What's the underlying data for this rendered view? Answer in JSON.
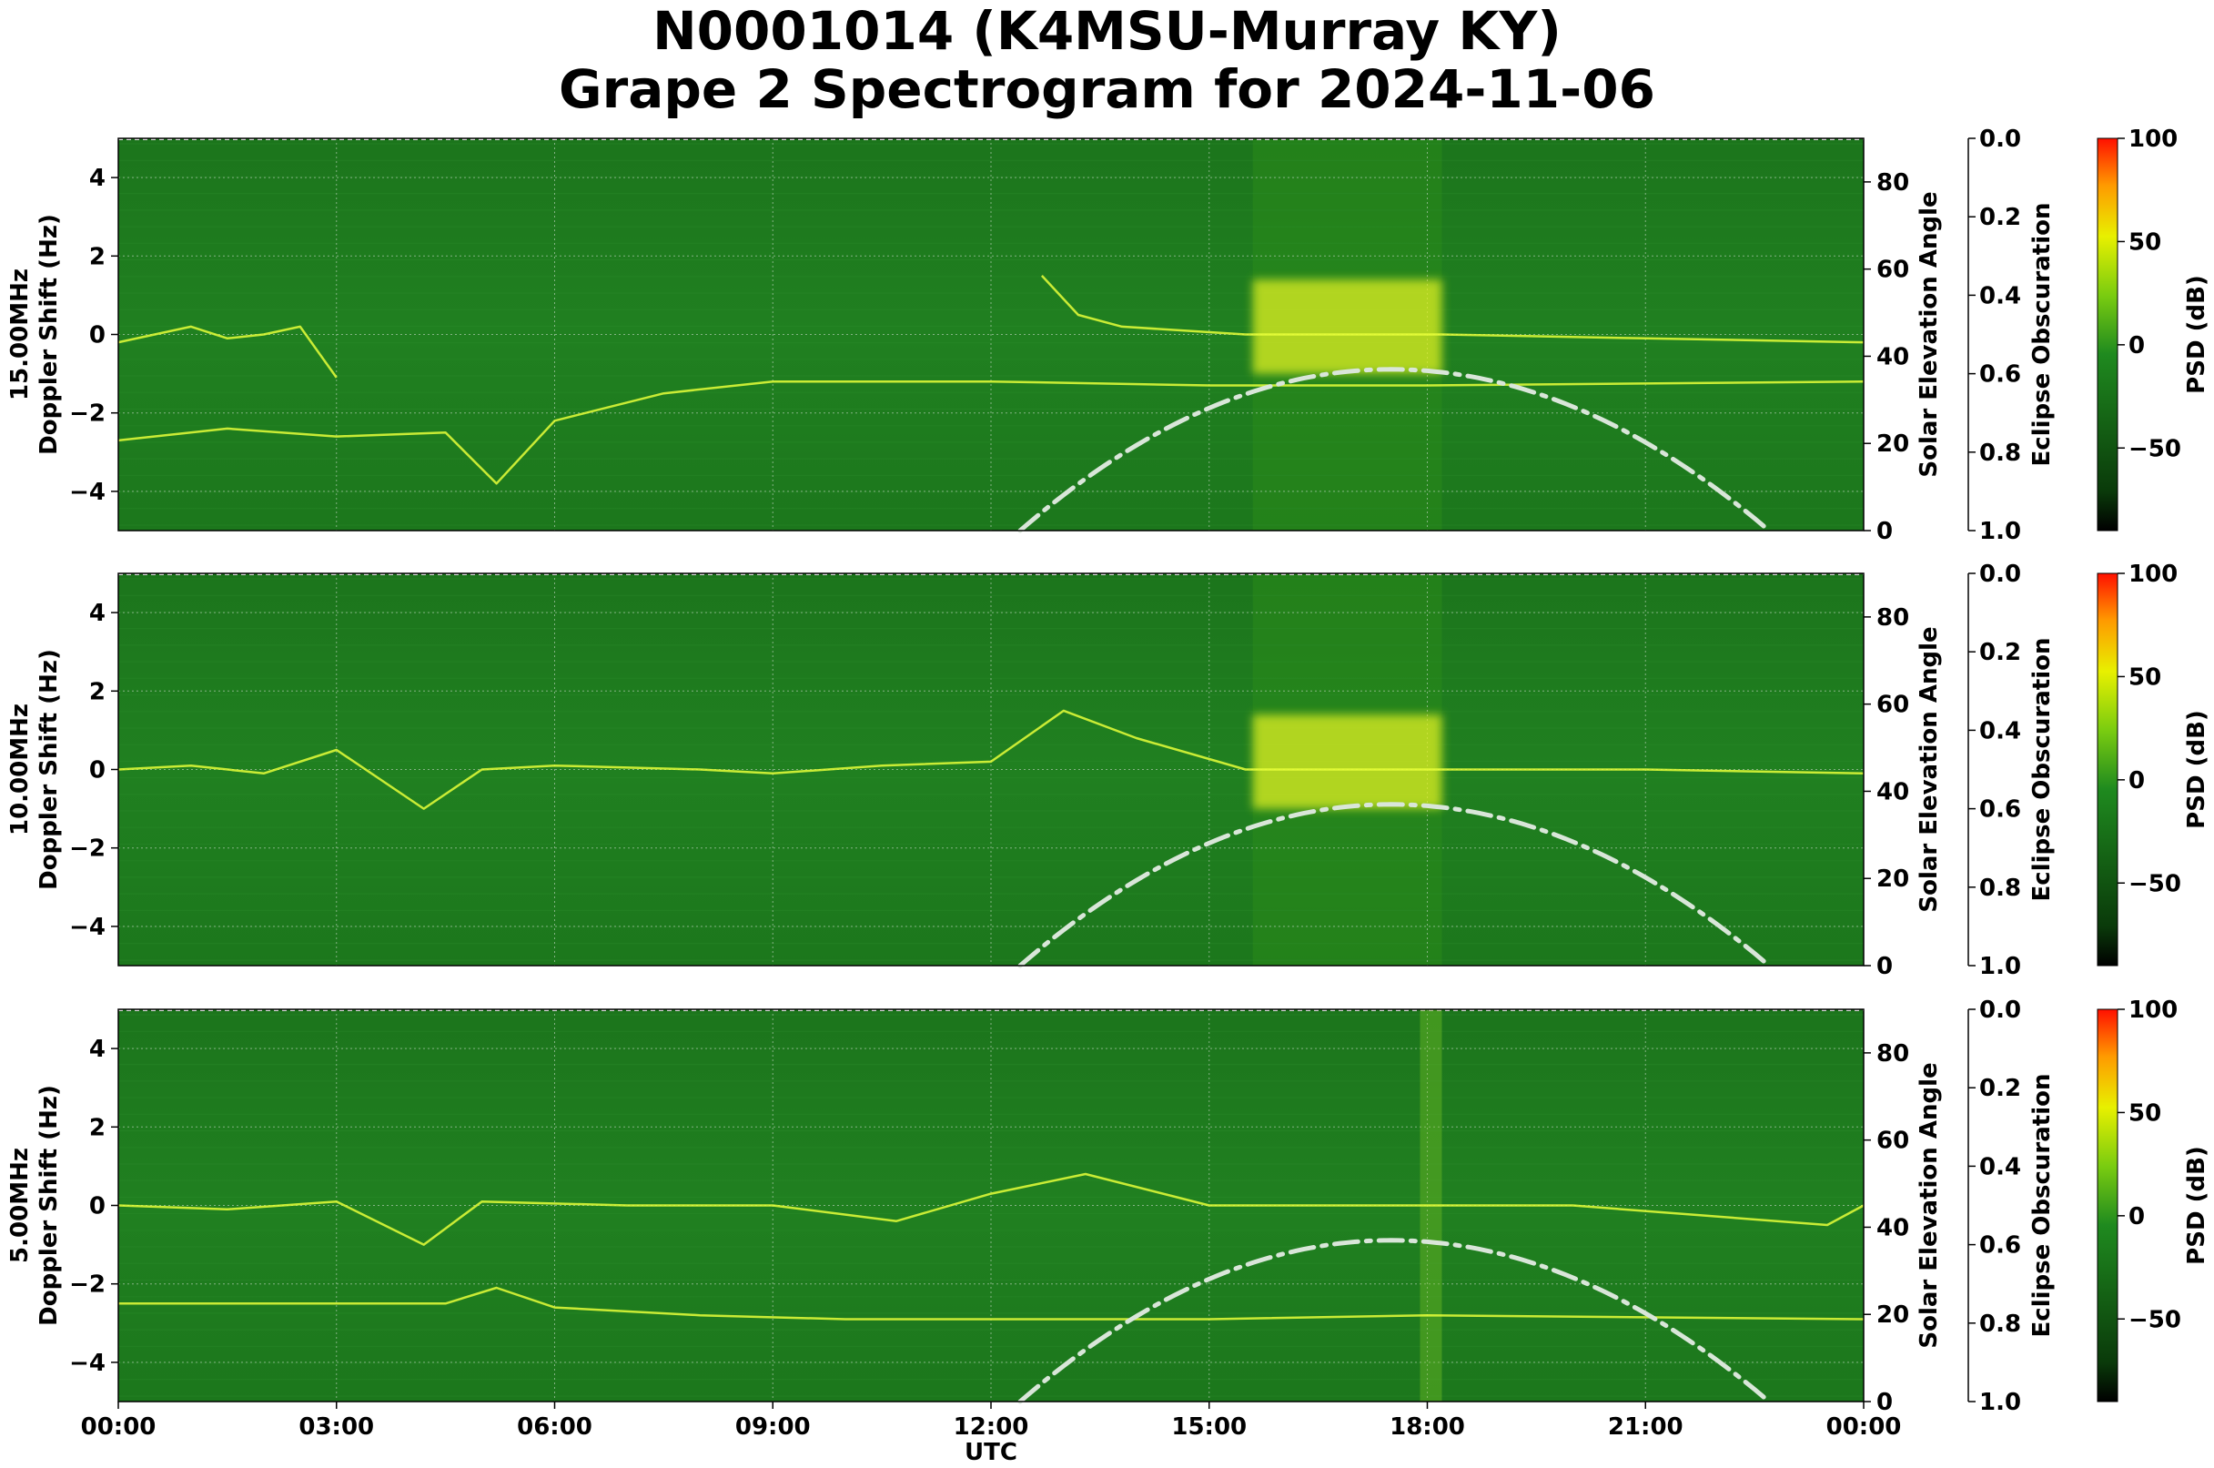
{
  "title_line1": "N0001014 (K4MSU-Murray KY)",
  "title_line2": "Grape 2 Spectrogram for 2024-11-06",
  "colors": {
    "background_green": "#1a7a1a",
    "trace_yellow": "#e8ff3a",
    "solar_curve": "#d9e6d9",
    "grid": "#c8d8c8"
  },
  "x_axis": {
    "label": "UTC",
    "ticks": [
      "00:00",
      "03:00",
      "06:00",
      "09:00",
      "12:00",
      "15:00",
      "18:00",
      "21:00",
      "00:00"
    ]
  },
  "doppler_ticks": [
    "4",
    "2",
    "0",
    "−2",
    "−4"
  ],
  "elevation_ticks": [
    "80",
    "60",
    "40",
    "20",
    "0"
  ],
  "obscuration_ticks": [
    "0.0",
    "0.2",
    "0.4",
    "0.6",
    "0.8",
    "1.0"
  ],
  "colorbar_ticks": [
    "100",
    "50",
    "0",
    "−50"
  ],
  "labels": {
    "elevation": "Solar Elevation Angle",
    "obscuration": "Eclipse Obscuration",
    "psd": "PSD (dB)",
    "doppler": "Doppler Shift (Hz)"
  },
  "chart_data": [
    {
      "type": "heatmap",
      "frequency_label": "15.00MHz",
      "ylabel": "Doppler Shift (Hz)",
      "xlabel": "UTC",
      "xlim_hours": [
        0,
        24
      ],
      "ylim": [
        -5,
        5
      ],
      "y2label": "Solar Elevation Angle",
      "y2lim": [
        0,
        90
      ],
      "y3label": "Eclipse Obscuration",
      "y3lim": [
        1.0,
        0.0
      ],
      "colorbar_label": "PSD (dB)",
      "colorbar_range": [
        -90,
        100
      ],
      "solar_elevation": {
        "peak_hour": 17.5,
        "peak_angle": 37,
        "rise_hour": 12.4,
        "set_hour": 22.7
      },
      "bright_band_hours": [
        15.6,
        18.2
      ],
      "traces": [
        {
          "name": "main",
          "points": [
            [
              0,
              -0.2
            ],
            [
              0.5,
              0
            ],
            [
              1,
              0.2
            ],
            [
              1.5,
              -0.1
            ],
            [
              2,
              0
            ],
            [
              2.5,
              0.2
            ],
            [
              3,
              -1.1
            ]
          ]
        },
        {
          "name": "main2",
          "points": [
            [
              12.7,
              1.5
            ],
            [
              13.2,
              0.5
            ],
            [
              13.8,
              0.2
            ],
            [
              15.5,
              0
            ],
            [
              18.2,
              0
            ],
            [
              21,
              -0.1
            ],
            [
              24,
              -0.2
            ]
          ]
        },
        {
          "name": "lower",
          "points": [
            [
              0,
              -2.7
            ],
            [
              1.5,
              -2.4
            ],
            [
              3,
              -2.6
            ],
            [
              4.5,
              -2.5
            ],
            [
              5.2,
              -3.8
            ],
            [
              6,
              -2.2
            ],
            [
              7.5,
              -1.5
            ],
            [
              9,
              -1.2
            ],
            [
              12,
              -1.2
            ],
            [
              15,
              -1.3
            ],
            [
              18,
              -1.3
            ],
            [
              24,
              -1.2
            ]
          ]
        }
      ]
    },
    {
      "type": "heatmap",
      "frequency_label": "10.00MHz",
      "ylabel": "Doppler Shift (Hz)",
      "xlabel": "UTC",
      "xlim_hours": [
        0,
        24
      ],
      "ylim": [
        -5,
        5
      ],
      "y2label": "Solar Elevation Angle",
      "y2lim": [
        0,
        90
      ],
      "y3label": "Eclipse Obscuration",
      "y3lim": [
        1.0,
        0.0
      ],
      "colorbar_label": "PSD (dB)",
      "colorbar_range": [
        -90,
        100
      ],
      "solar_elevation": {
        "peak_hour": 17.5,
        "peak_angle": 37,
        "rise_hour": 12.4,
        "set_hour": 22.7
      },
      "bright_band_hours": [
        15.6,
        18.2
      ],
      "traces": [
        {
          "name": "main",
          "points": [
            [
              0,
              0
            ],
            [
              1,
              0.1
            ],
            [
              2,
              -0.1
            ],
            [
              3,
              0.5
            ],
            [
              4.2,
              -1
            ],
            [
              5,
              0
            ],
            [
              6,
              0.1
            ],
            [
              8,
              0
            ],
            [
              9,
              -0.1
            ],
            [
              10.5,
              0.1
            ],
            [
              12,
              0.2
            ],
            [
              13,
              1.5
            ],
            [
              14,
              0.8
            ],
            [
              15.5,
              0
            ],
            [
              18.2,
              0
            ],
            [
              21,
              0
            ],
            [
              24,
              -0.1
            ]
          ]
        }
      ]
    },
    {
      "type": "heatmap",
      "frequency_label": "5.00MHz",
      "ylabel": "Doppler Shift (Hz)",
      "xlabel": "UTC",
      "xlim_hours": [
        0,
        24
      ],
      "ylim": [
        -5,
        5
      ],
      "y2label": "Solar Elevation Angle",
      "y2lim": [
        0,
        90
      ],
      "y3label": "Eclipse Obscuration",
      "y3lim": [
        1.0,
        0.0
      ],
      "colorbar_label": "PSD (dB)",
      "colorbar_range": [
        -90,
        100
      ],
      "solar_elevation": {
        "peak_hour": 17.5,
        "peak_angle": 37,
        "rise_hour": 12.4,
        "set_hour": 22.7
      },
      "bright_band_hours": [
        17.9,
        18.2
      ],
      "traces": [
        {
          "name": "main",
          "points": [
            [
              0,
              0
            ],
            [
              1.5,
              -0.1
            ],
            [
              3,
              0.1
            ],
            [
              4.2,
              -1
            ],
            [
              5,
              0.1
            ],
            [
              7,
              0
            ],
            [
              9,
              0
            ],
            [
              10.7,
              -0.4
            ],
            [
              12,
              0.3
            ],
            [
              13.3,
              0.8
            ],
            [
              15,
              0
            ],
            [
              20,
              0
            ],
            [
              23.5,
              -0.5
            ],
            [
              24,
              0
            ]
          ]
        },
        {
          "name": "lower",
          "points": [
            [
              0,
              -2.5
            ],
            [
              3,
              -2.5
            ],
            [
              4.5,
              -2.5
            ],
            [
              5.2,
              -2.1
            ],
            [
              6,
              -2.6
            ],
            [
              8,
              -2.8
            ],
            [
              10,
              -2.9
            ],
            [
              12,
              -2.9
            ],
            [
              15,
              -2.9
            ],
            [
              18,
              -2.8
            ],
            [
              24,
              -2.9
            ]
          ]
        }
      ]
    }
  ]
}
